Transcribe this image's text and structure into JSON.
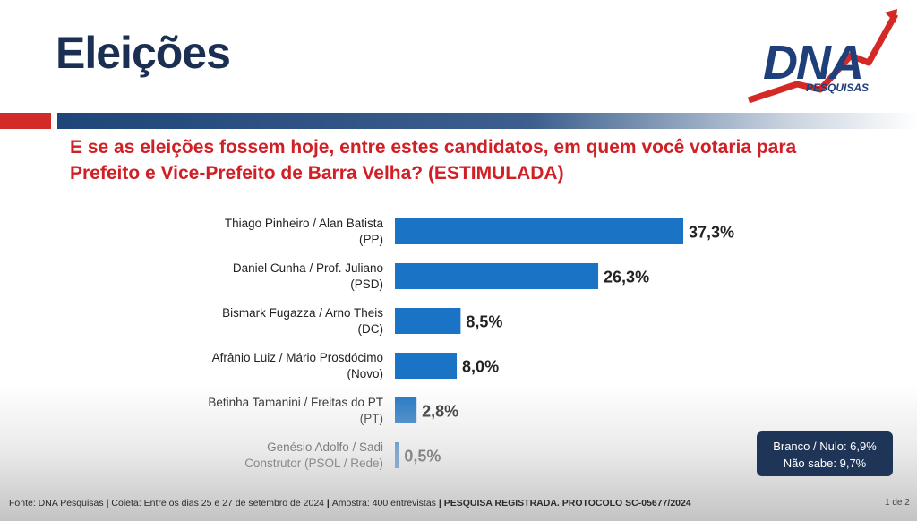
{
  "header": {
    "title": "Eleições",
    "logo_text": "DNA",
    "logo_subtext": "PESQUISAS"
  },
  "question": {
    "line1": "E se as eleições fossem hoje, entre estes candidatos, em quem você votaria para",
    "line2": "Prefeito e Vice-Prefeito de Barra Velha? (ESTIMULADA)"
  },
  "chart_data": {
    "type": "bar",
    "orientation": "horizontal",
    "categories": [
      [
        "Thiago Pinheiro / Alan Batista",
        "(PP)"
      ],
      [
        "Daniel Cunha / Prof. Juliano",
        "(PSD)"
      ],
      [
        "Bismark Fugazza / Arno Theis",
        "(DC)"
      ],
      [
        "Afrânio Luiz / Mário Prosdócimo",
        "(Novo)"
      ],
      [
        "Betinha Tamanini / Freitas do PT",
        "(PT)"
      ],
      [
        "Genésio Adolfo / Sadi",
        "Construtor (PSOL / Rede)"
      ]
    ],
    "values": [
      37.3,
      26.3,
      8.5,
      8.0,
      2.8,
      0.5
    ],
    "value_labels": [
      "37,3%",
      "26,3%",
      "8,5%",
      "8,0%",
      "2,8%",
      "0,5%"
    ],
    "bar_color": "#1a73c4",
    "grid": false
  },
  "summary": {
    "line1": "Branco / Nulo: 6,9%",
    "line2": "Não sabe: 9,7%"
  },
  "footer": {
    "source": "Fonte: DNA Pesquisas",
    "sep": " | ",
    "collection": "Coleta: Entre os dias 25 e 27 de setembro de 2024",
    "sample": "Amostra: 400 entrevistas",
    "registration": "PESQUISA REGISTRADA. PROTOCOLO SC-05677/2024",
    "page": "1 de 2"
  },
  "colors": {
    "title": "#1b2f52",
    "question": "#d11f26",
    "logo_blue": "#1f3f7a",
    "logo_red": "#d32a27"
  }
}
